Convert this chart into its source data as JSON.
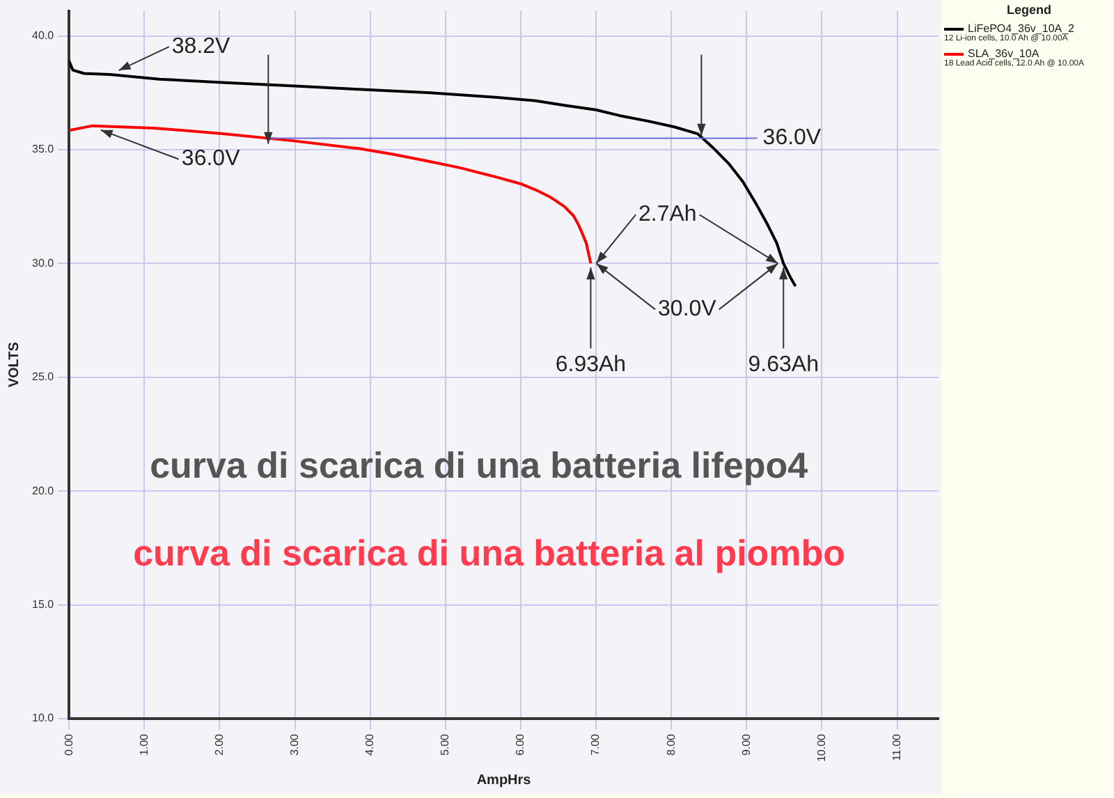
{
  "chart_data": {
    "type": "line",
    "xlabel": "AmpHrs",
    "ylabel": "VOLTS",
    "legend_title": "Legend",
    "xlim": [
      0,
      11.55
    ],
    "ylim": [
      10,
      41.1
    ],
    "xticks": [
      {
        "value": 0,
        "label": "0.00"
      },
      {
        "value": 1,
        "label": "1.00"
      },
      {
        "value": 2,
        "label": "2.00"
      },
      {
        "value": 3,
        "label": "3.00"
      },
      {
        "value": 4,
        "label": "4.00"
      },
      {
        "value": 5,
        "label": "5.00"
      },
      {
        "value": 6,
        "label": "6.00"
      },
      {
        "value": 7,
        "label": "7.00"
      },
      {
        "value": 8,
        "label": "8.00"
      },
      {
        "value": 9,
        "label": "9.00"
      },
      {
        "value": 10,
        "label": "10.00"
      },
      {
        "value": 11,
        "label": "11.00"
      }
    ],
    "yticks": [
      {
        "value": 10,
        "label": "10.0"
      },
      {
        "value": 15,
        "label": "15.0"
      },
      {
        "value": 20,
        "label": "20.0"
      },
      {
        "value": 25,
        "label": "25.0"
      },
      {
        "value": 30,
        "label": "30.0"
      },
      {
        "value": 35,
        "label": "35.0"
      },
      {
        "value": 40,
        "label": "40.0"
      }
    ],
    "grid": true,
    "legend": "top right",
    "marker": "none",
    "line_style": "solid",
    "series": [
      {
        "name": "LiFePO4_36v_10A_2",
        "color": "#000000",
        "x": [
          0,
          0.05,
          0.2,
          0.55,
          1.2,
          2.04,
          3.0,
          3.85,
          4.8,
          5.67,
          6.2,
          6.58,
          7.0,
          7.31,
          7.7,
          8.04,
          8.35,
          8.55,
          8.76,
          8.95,
          9.13,
          9.28,
          9.4,
          9.49,
          9.58,
          9.65
        ],
        "values": [
          38.9,
          38.5,
          38.35,
          38.3,
          38.1,
          37.95,
          37.8,
          37.65,
          37.5,
          37.3,
          37.15,
          36.95,
          36.75,
          36.5,
          36.25,
          36.0,
          35.7,
          35.1,
          34.4,
          33.6,
          32.6,
          31.7,
          30.9,
          30.0,
          29.4,
          29.0
        ]
      },
      {
        "name": "SLA_36v_10A",
        "color": "#ff0000",
        "x": [
          0,
          0.31,
          1.13,
          2.04,
          2.95,
          3.85,
          4.3,
          4.76,
          5.2,
          5.67,
          6.0,
          6.22,
          6.4,
          6.58,
          6.7,
          6.76,
          6.82,
          6.87,
          6.93
        ],
        "values": [
          35.85,
          36.05,
          35.95,
          35.7,
          35.4,
          35.05,
          34.8,
          34.5,
          34.2,
          33.8,
          33.5,
          33.2,
          32.9,
          32.5,
          32.1,
          31.75,
          31.3,
          30.9,
          30.0
        ]
      }
    ],
    "annotations": [
      {
        "text": "38.2V",
        "x": 0.55,
        "y": 38.3
      },
      {
        "text": "36.0V",
        "x": 0.31,
        "y": 36.05
      },
      {
        "text": "36.0V",
        "x": 8.4,
        "y": 35.5
      },
      {
        "text": "6.93Ah",
        "x": 6.93,
        "y": 30.0
      },
      {
        "text": "9.63Ah",
        "x": 9.49,
        "y": 30.0
      },
      "2.7Ah",
      "30.0V",
      "12 Li-ion cells, 10.0 Ah @ 10.00A",
      "18 Lead Acid cells, 12.0 Ah @ 10.00A",
      "curva di scarica di una batteria lifepo4",
      "curva di scarica di una batteria al piombo"
    ]
  }
}
